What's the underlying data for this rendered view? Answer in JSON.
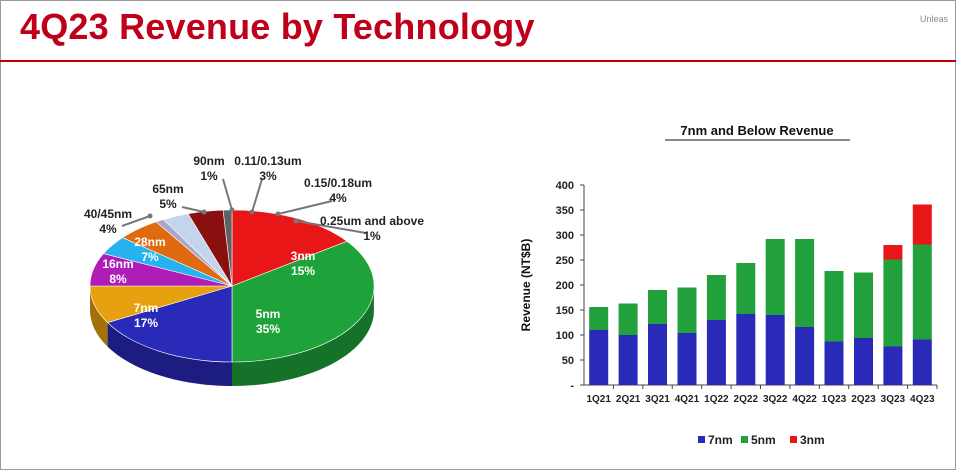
{
  "header": {
    "title": "4Q23 Revenue by Technology",
    "corner_text": "Unleas"
  },
  "colors": {
    "title_red": "#c0001a",
    "n7": "#2a2ab8",
    "n5": "#22a03c",
    "n3": "#e81616"
  },
  "chart_data": [
    {
      "type": "pie",
      "title": "",
      "slices": [
        {
          "label": "3nm",
          "value": 15,
          "pct_text": "15%",
          "color": "#e81616"
        },
        {
          "label": "5nm",
          "value": 35,
          "pct_text": "35%",
          "color": "#1ea33a"
        },
        {
          "label": "7nm",
          "value": 17,
          "pct_text": "17%",
          "color": "#2a2ab8"
        },
        {
          "label": "16nm",
          "value": 8,
          "pct_text": "8%",
          "color": "#e8a10e"
        },
        {
          "label": "28nm",
          "value": 7,
          "pct_text": "7%",
          "color": "#b01cb8"
        },
        {
          "label": "40/45nm",
          "value": 4,
          "pct_text": "4%",
          "color": "#26b2ee"
        },
        {
          "label": "65nm",
          "value": 5,
          "pct_text": "5%",
          "color": "#e06a10"
        },
        {
          "label": "90nm",
          "value": 1,
          "pct_text": "1%",
          "color": "#a8a8c8"
        },
        {
          "label": "0.11/0.13um",
          "value": 3,
          "pct_text": "3%",
          "color": "#c4d4ec"
        },
        {
          "label": "0.15/0.18um",
          "value": 4,
          "pct_text": "4%",
          "color": "#8a1010"
        },
        {
          "label": "0.25um and above",
          "value": 1,
          "pct_text": "1%",
          "color": "#606060"
        }
      ]
    },
    {
      "type": "bar",
      "stacked": true,
      "title": "7nm and Below Revenue",
      "xlabel": "",
      "ylabel": "Revenue (NT$B)",
      "ylim": [
        0,
        400
      ],
      "yticks": [
        "-",
        "50",
        "100",
        "150",
        "200",
        "250",
        "300",
        "350",
        "400"
      ],
      "categories": [
        "1Q21",
        "2Q21",
        "3Q21",
        "4Q21",
        "1Q22",
        "2Q22",
        "3Q22",
        "4Q22",
        "1Q23",
        "2Q23",
        "3Q23",
        "4Q23"
      ],
      "series": [
        {
          "name": "7nm",
          "color": "#2a2ab8",
          "values": [
            110,
            100,
            122,
            104,
            130,
            142,
            140,
            116,
            87,
            94,
            77,
            91
          ]
        },
        {
          "name": "5nm",
          "color": "#22a03c",
          "values": [
            46,
            63,
            68,
            91,
            90,
            102,
            152,
            176,
            141,
            131,
            174,
            190
          ]
        },
        {
          "name": "3nm",
          "color": "#e81616",
          "values": [
            0,
            0,
            0,
            0,
            0,
            0,
            0,
            0,
            0,
            0,
            29,
            80
          ]
        }
      ],
      "legend": "bottom",
      "grid": false
    }
  ]
}
